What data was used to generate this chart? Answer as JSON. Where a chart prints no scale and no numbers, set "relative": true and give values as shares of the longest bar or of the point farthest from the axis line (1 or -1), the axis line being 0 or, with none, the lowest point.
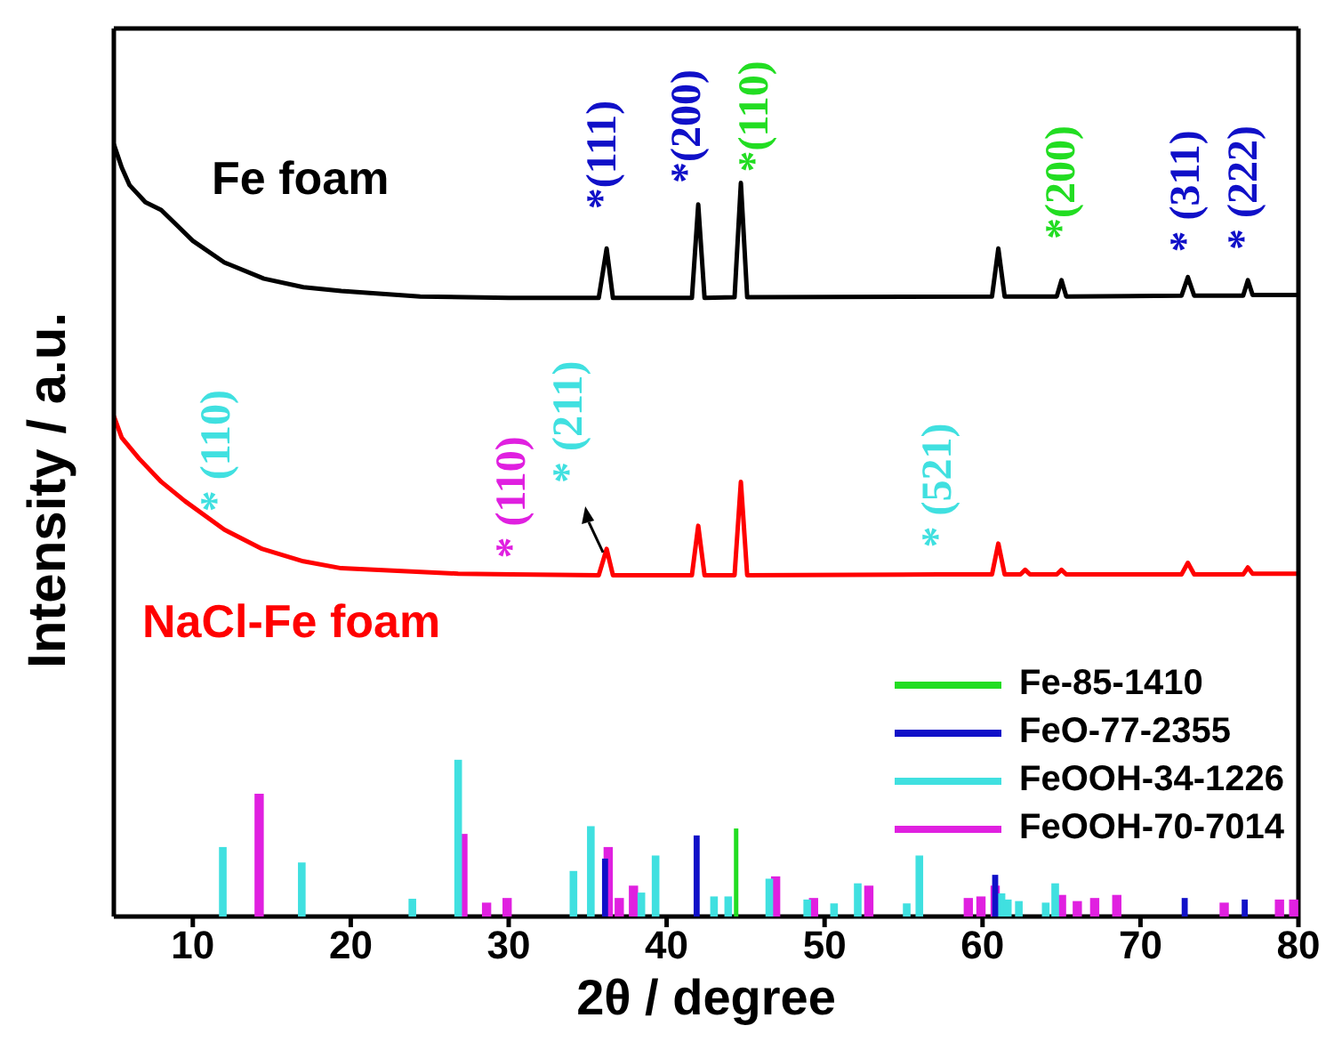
{
  "chart_data": {
    "type": "line",
    "relative": true,
    "xlabel": "2θ / degree",
    "ylabel": "Intensity / a.u.",
    "xlim": [
      5,
      80
    ],
    "xticks": [
      10,
      20,
      30,
      40,
      50,
      60,
      70,
      80
    ],
    "grid": false,
    "marker": "none",
    "line_style": "solid",
    "legend": "bottom right",
    "series": [
      {
        "name": "Fe foam",
        "color": "#000000",
        "x": [
          5,
          5.5,
          6,
          7,
          8,
          9,
          10,
          12,
          14.5,
          17,
          19.4,
          24.4,
          30,
          35.7,
          36.2,
          36.6,
          41.6,
          42.0,
          42.4,
          44.3,
          44.7,
          45.1,
          60.6,
          61.0,
          61.4,
          64.7,
          65.0,
          65.3,
          72.6,
          73.0,
          73.4,
          76.5,
          76.8,
          77.1,
          80
        ],
        "values": [
          1.0,
          0.97,
          0.947,
          0.925,
          0.915,
          0.895,
          0.875,
          0.847,
          0.826,
          0.815,
          0.81,
          0.803,
          0.801,
          0.801,
          0.865,
          0.801,
          0.801,
          0.922,
          0.801,
          0.802,
          0.95,
          0.802,
          0.803,
          0.865,
          0.803,
          0.803,
          0.824,
          0.803,
          0.804,
          0.828,
          0.804,
          0.804,
          0.824,
          0.805,
          0.805
        ]
      },
      {
        "name": "NaCl-Fe foam",
        "color": "#ff0000",
        "x": [
          5,
          5.5,
          6.6,
          8,
          9.5,
          12,
          14.4,
          17,
          19.4,
          26.8,
          30.2,
          35.7,
          36.2,
          36.6,
          41.6,
          42.0,
          42.4,
          44.3,
          44.7,
          45.1,
          57.2,
          60.6,
          61.0,
          61.4,
          62.4,
          62.7,
          63,
          64.7,
          65.0,
          65.3,
          72.6,
          73.0,
          73.4,
          76.5,
          76.8,
          77.1,
          80
        ],
        "values": [
          0.648,
          0.62,
          0.593,
          0.563,
          0.538,
          0.501,
          0.476,
          0.46,
          0.451,
          0.444,
          0.443,
          0.442,
          0.476,
          0.442,
          0.442,
          0.506,
          0.442,
          0.442,
          0.563,
          0.442,
          0.443,
          0.443,
          0.483,
          0.443,
          0.443,
          0.449,
          0.443,
          0.443,
          0.449,
          0.443,
          0.443,
          0.458,
          0.443,
          0.443,
          0.452,
          0.444,
          0.444
        ]
      },
      {
        "type": "bar",
        "name": "Fe-85-1410",
        "color": "#22dd22",
        "x": [
          44.4
        ],
        "values": [
          0.114
        ]
      },
      {
        "type": "bar",
        "name": "FeO-77-2355",
        "color": "#1010c8",
        "x": [
          36.1,
          41.9,
          60.8,
          72.8,
          76.6
        ],
        "values": [
          0.075,
          0.105,
          0.054,
          0.024,
          0.022
        ]
      },
      {
        "type": "bar",
        "name": "FeOOH-34-1226",
        "color": "#40e0e0",
        "x": [
          11.9,
          16.9,
          23.9,
          26.8,
          34.1,
          35.2,
          38.4,
          39.3,
          43.0,
          43.9,
          46.5,
          48.9,
          50.6,
          52.1,
          55.2,
          56.0,
          61.2,
          61.6,
          62.3,
          64.0,
          64.6
        ],
        "values": [
          0.09,
          0.07,
          0.023,
          0.203,
          0.059,
          0.117,
          0.031,
          0.079,
          0.026,
          0.026,
          0.049,
          0.022,
          0.017,
          0.043,
          0.017,
          0.079,
          0.03,
          0.022,
          0.02,
          0.018,
          0.043
        ]
      },
      {
        "type": "bar",
        "name": "FeOOH-70-7014",
        "color": "#e020e0",
        "x": [
          14.2,
          27.1,
          28.6,
          29.9,
          36.3,
          37.0,
          37.9,
          46.9,
          49.3,
          52.8,
          59.1,
          59.9,
          60.8,
          65.0,
          66.0,
          67.1,
          68.5,
          75.3,
          78.8,
          79.7
        ],
        "values": [
          0.159,
          0.107,
          0.018,
          0.024,
          0.09,
          0.024,
          0.04,
          0.052,
          0.024,
          0.04,
          0.024,
          0.026,
          0.04,
          0.028,
          0.02,
          0.024,
          0.028,
          0.018,
          0.022,
          0.022
        ]
      }
    ],
    "annotations": [
      {
        "text": "*(111)",
        "x": 36.2,
        "y": 0.865
      },
      {
        "text": "*(200)",
        "x": 42.0,
        "y": 0.922
      },
      {
        "text": "*(110)",
        "x": 44.7,
        "y": 0.95
      },
      {
        "text": "*(200)",
        "x": 65.0,
        "y": 0.824
      },
      {
        "text": "* (311)",
        "x": 73.0,
        "y": 0.828
      },
      {
        "text": "* (222)",
        "x": 76.8,
        "y": 0.824
      },
      {
        "text": "* (110)",
        "x": 12,
        "y": 0.501
      },
      {
        "text": "* (110)",
        "x": 30.2,
        "y": 0.443
      },
      {
        "text": "* (211)",
        "x": 36.2,
        "y": 0.476
      },
      {
        "text": "* (521)",
        "x": 57.2,
        "y": 0.443
      }
    ]
  }
}
